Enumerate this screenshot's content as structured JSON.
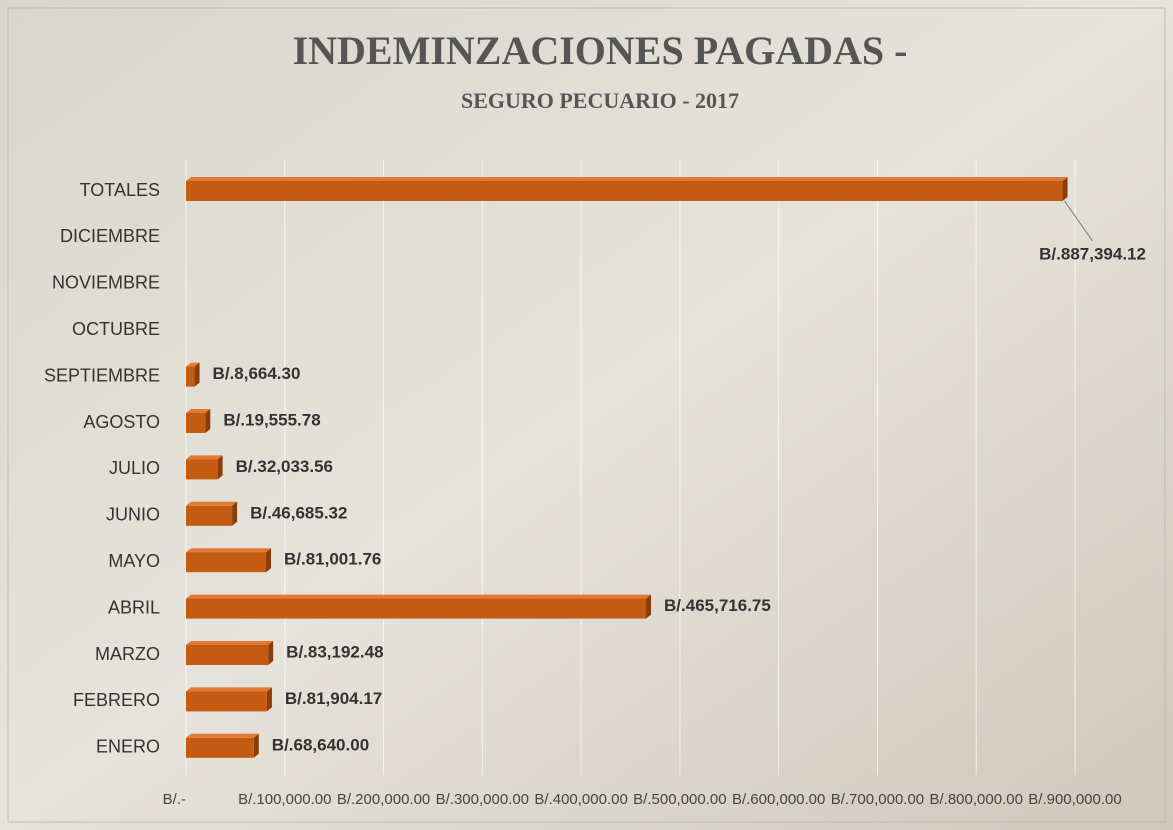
{
  "chart_data": {
    "type": "bar",
    "orientation": "horizontal",
    "title": "INDEMINZACIONES PAGADAS -",
    "subtitle": "SEGURO PECUARIO - 2017",
    "categories": [
      "TOTALES",
      "DICIEMBRE",
      "NOVIEMBRE",
      "OCTUBRE",
      "SEPTIEMBRE",
      "AGOSTO",
      "JULIO",
      "JUNIO",
      "MAYO",
      "ABRIL",
      "MARZO",
      "FEBRERO",
      "ENERO"
    ],
    "values": [
      887394.12,
      null,
      null,
      null,
      8664.3,
      19555.78,
      32033.56,
      46685.32,
      81001.76,
      465716.75,
      83192.48,
      81904.17,
      68640.0
    ],
    "value_labels": [
      "B/.887,394.12",
      null,
      null,
      null,
      "B/.8,664.30",
      "B/.19,555.78",
      "B/.32,033.56",
      "B/.46,685.32",
      "B/.81,001.76",
      "B/.465,716.75",
      "B/.83,192.48",
      "B/.81,904.17",
      "B/.68,640.00"
    ],
    "color": "#c55a11",
    "xlim": [
      0,
      900000
    ],
    "xticks": [
      {
        "value": 0,
        "label": "B/.-"
      },
      {
        "value": 100000,
        "label": "B/.100,000.00"
      },
      {
        "value": 200000,
        "label": "B/.200,000.00"
      },
      {
        "value": 300000,
        "label": "B/.300,000.00"
      },
      {
        "value": 400000,
        "label": "B/.400,000.00"
      },
      {
        "value": 500000,
        "label": "B/.500,000.00"
      },
      {
        "value": 600000,
        "label": "B/.600,000.00"
      },
      {
        "value": 700000,
        "label": "B/.700,000.00"
      },
      {
        "value": 800000,
        "label": "B/.800,000.00"
      },
      {
        "value": 900000,
        "label": "B/.900,000.00"
      }
    ],
    "grid": true
  }
}
